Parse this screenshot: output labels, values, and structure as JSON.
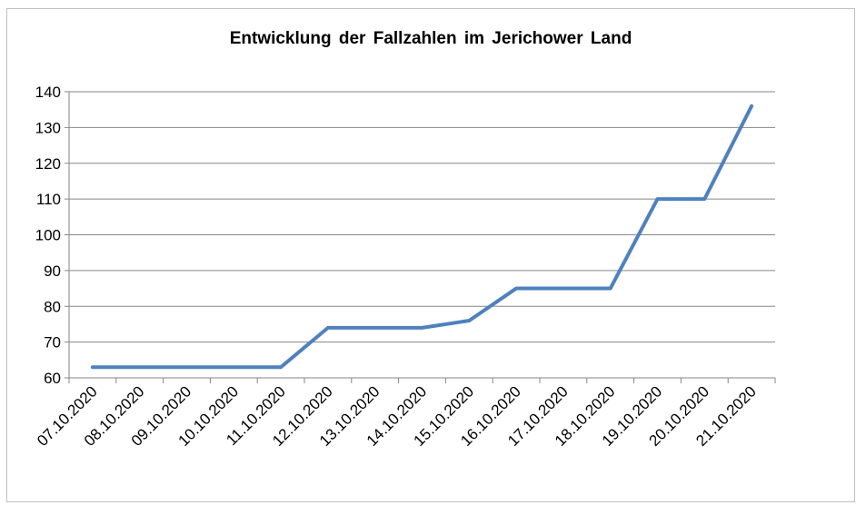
{
  "chart_data": {
    "type": "line",
    "title": "Entwicklung der Fallzahlen im Jerichower Land",
    "xlabel": "",
    "ylabel": "",
    "categories": [
      "07.10.2020",
      "08.10.2020",
      "09.10.2020",
      "10.10.2020",
      "11.10.2020",
      "12.10.2020",
      "13.10.2020",
      "14.10.2020",
      "15.10.2020",
      "16.10.2020",
      "17.10.2020",
      "18.10.2020",
      "19.10.2020",
      "20.10.2020",
      "21.10.2020"
    ],
    "series": [
      {
        "values": [
          63,
          63,
          63,
          63,
          63,
          74,
          74,
          74,
          76,
          85,
          85,
          85,
          110,
          110,
          136
        ],
        "color": "#4f81bd"
      }
    ],
    "ylim": [
      60,
      140
    ],
    "yticks": [
      60,
      70,
      80,
      90,
      100,
      110,
      120,
      130,
      140
    ],
    "grid": true,
    "legend": "none"
  }
}
